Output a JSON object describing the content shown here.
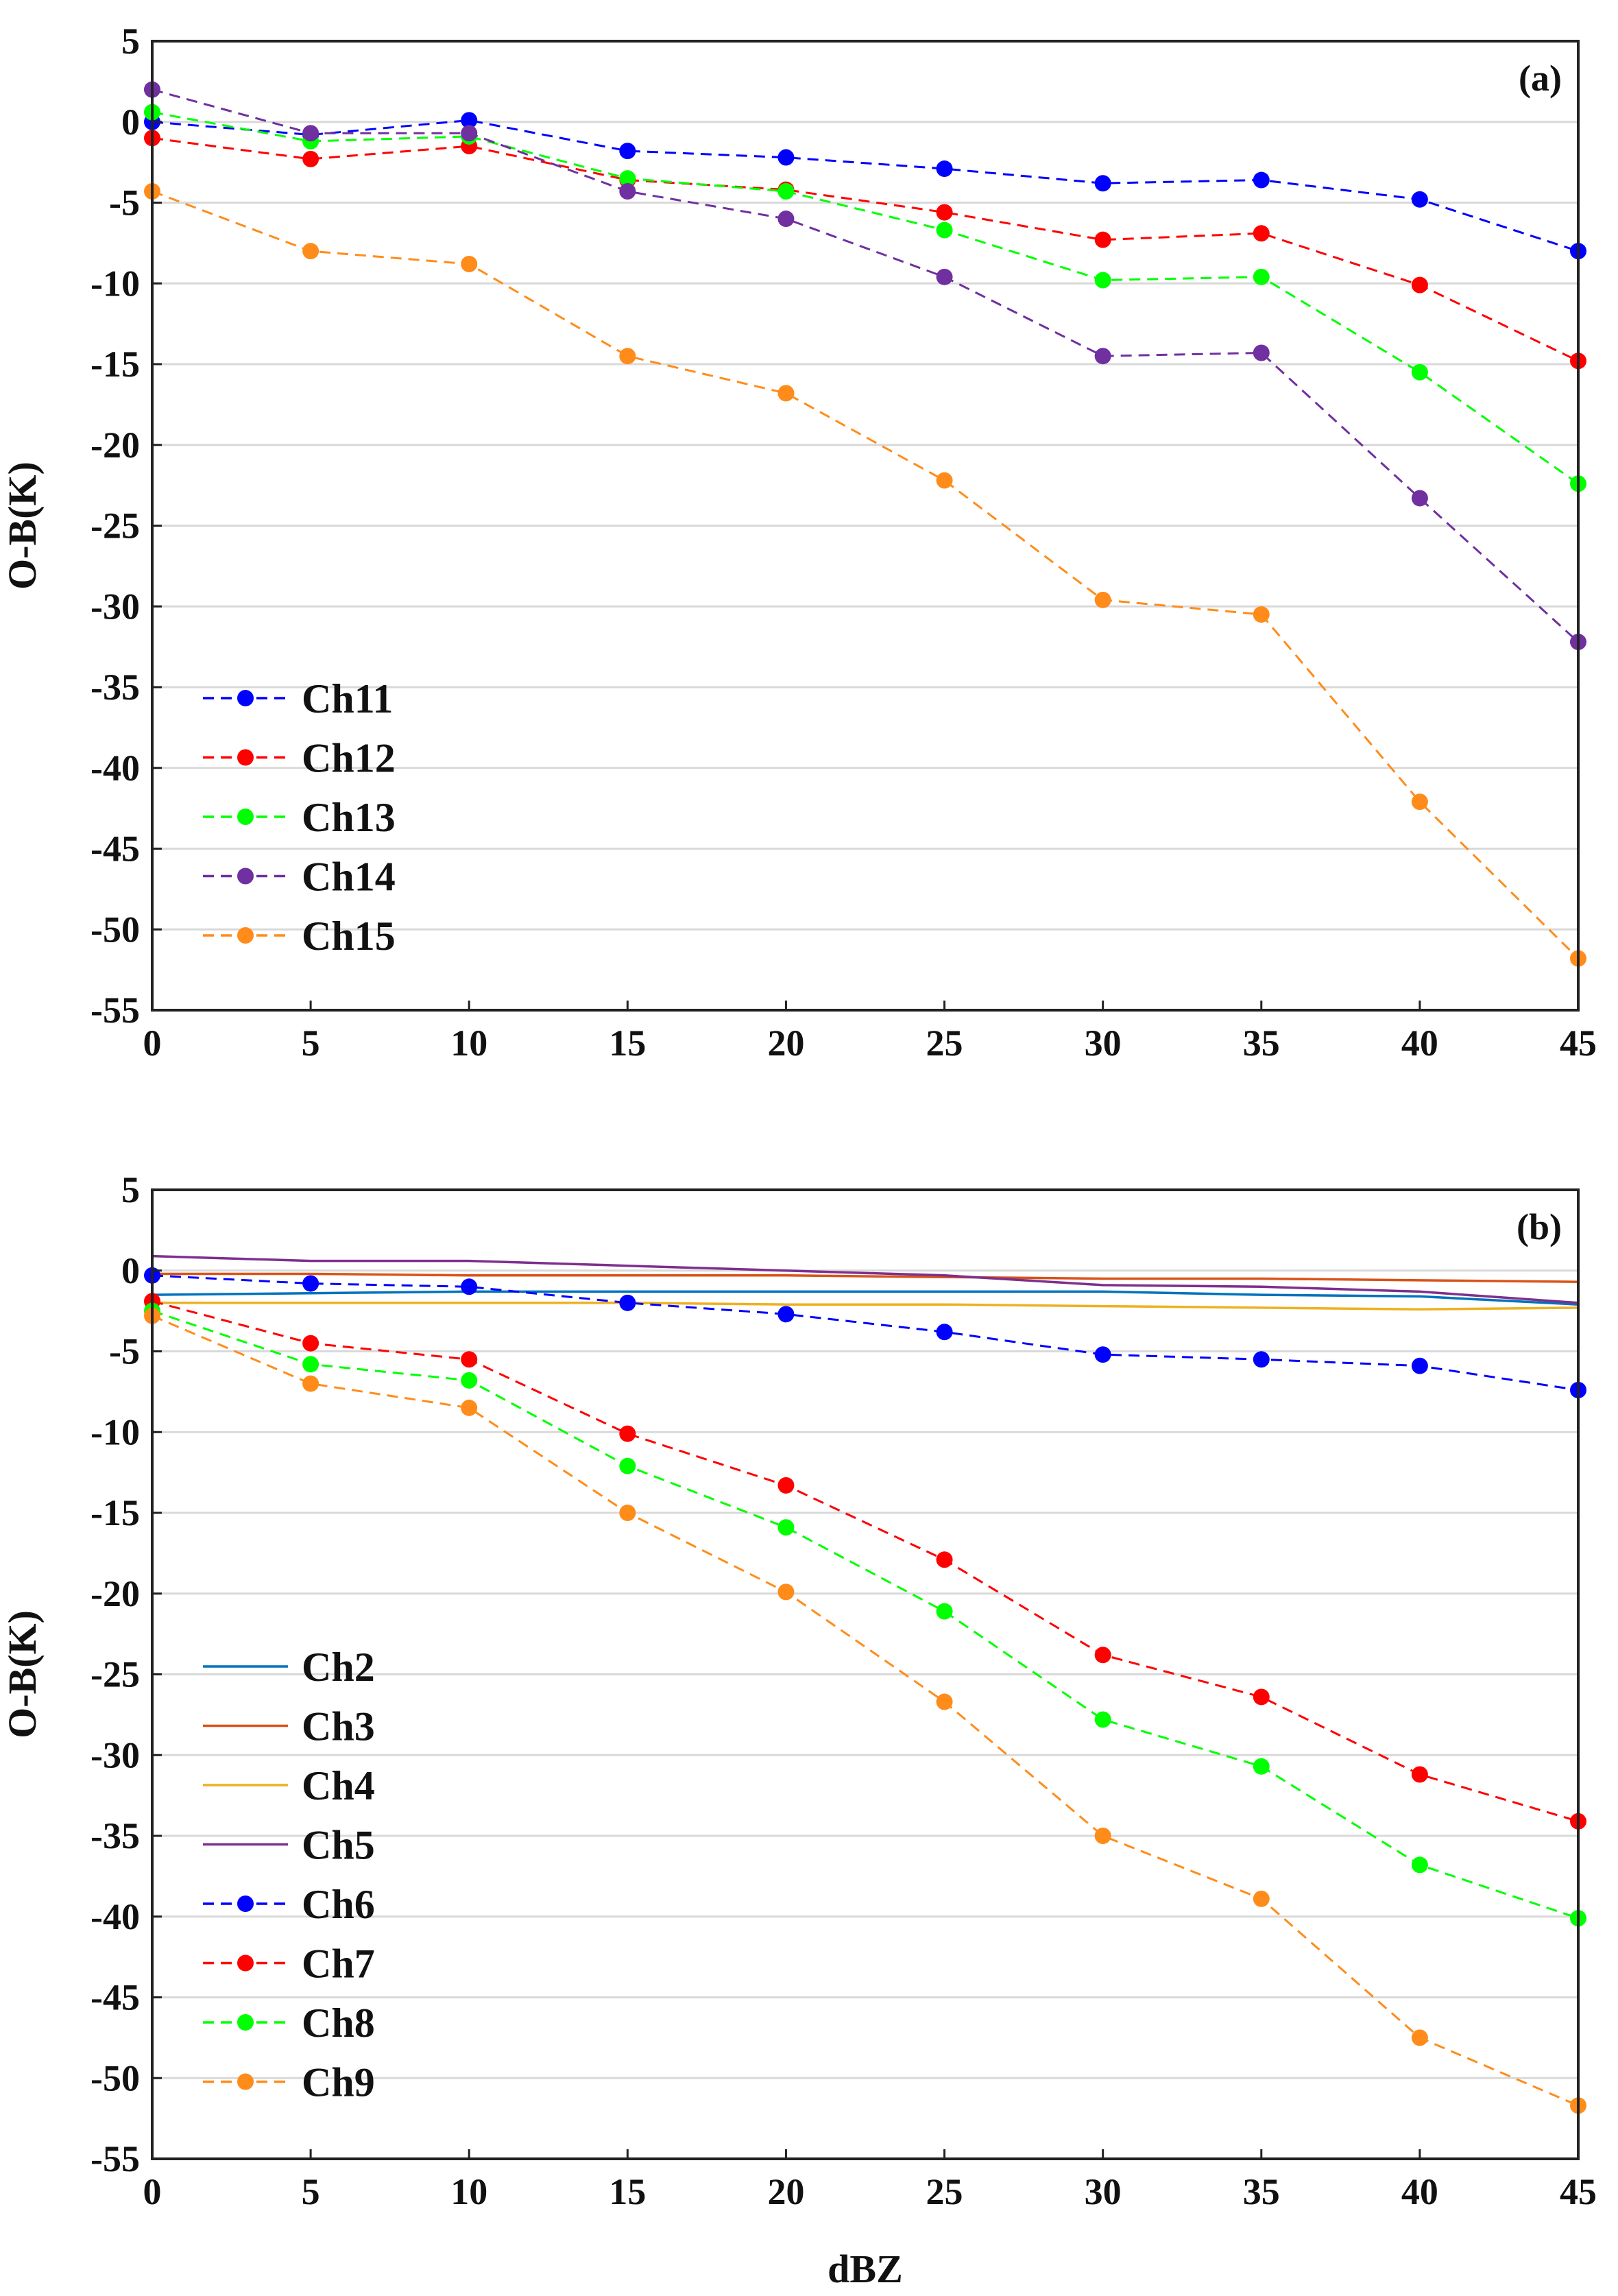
{
  "chart_data": [
    {
      "type": "line",
      "panel_label": "(a)",
      "xlabel": "",
      "ylabel": "O-B(K)",
      "xlim": [
        0,
        45
      ],
      "ylim": [
        -55,
        5
      ],
      "x": [
        0,
        5,
        10,
        15,
        20,
        25,
        30,
        35,
        40,
        45
      ],
      "xticks": [
        "0",
        "5",
        "10",
        "15",
        "20",
        "25",
        "30",
        "35",
        "40",
        "45"
      ],
      "yticks": [
        "5",
        "0",
        "-5",
        "-10",
        "-15",
        "-20",
        "-25",
        "-30",
        "-35",
        "-40",
        "-45",
        "-50",
        "-55"
      ],
      "grid": "horizontal",
      "legend_position": "bottom-left",
      "series": [
        {
          "name": "Ch11",
          "color": "#0000ff",
          "style": "dashed",
          "marker": true,
          "values": [
            0,
            -0.8,
            0.1,
            -1.8,
            -2.2,
            -2.9,
            -3.8,
            -3.6,
            -4.8,
            -8.0
          ]
        },
        {
          "name": "Ch12",
          "color": "#ff0000",
          "style": "dashed",
          "marker": true,
          "values": [
            -1.0,
            -2.3,
            -1.5,
            -3.6,
            -4.2,
            -5.6,
            -7.3,
            -6.9,
            -10.1,
            -14.8
          ]
        },
        {
          "name": "Ch13",
          "color": "#00ff00",
          "style": "dashed",
          "marker": true,
          "values": [
            0.6,
            -1.2,
            -0.9,
            -3.5,
            -4.3,
            -6.7,
            -9.8,
            -9.6,
            -15.5,
            -22.4
          ]
        },
        {
          "name": "Ch14",
          "color": "#7030a0",
          "style": "dashed",
          "marker": true,
          "values": [
            2.0,
            -0.7,
            -0.7,
            -4.3,
            -6.0,
            -9.6,
            -14.5,
            -14.3,
            -23.3,
            -32.2
          ]
        },
        {
          "name": "Ch15",
          "color": "#ff8c1a",
          "style": "dashed",
          "marker": true,
          "values": [
            -4.3,
            -8.0,
            -8.8,
            -14.5,
            -16.8,
            -22.2,
            -29.6,
            -30.5,
            -42.1,
            -51.8
          ]
        }
      ]
    },
    {
      "type": "line",
      "panel_label": "(b)",
      "xlabel": "dBZ",
      "ylabel": "O-B(K)",
      "xlim": [
        0,
        45
      ],
      "ylim": [
        -55,
        5
      ],
      "x": [
        0,
        5,
        10,
        15,
        20,
        25,
        30,
        35,
        40,
        45
      ],
      "xticks": [
        "0",
        "5",
        "10",
        "15",
        "20",
        "25",
        "30",
        "35",
        "40",
        "45"
      ],
      "yticks": [
        "5",
        "0",
        "-5",
        "-10",
        "-15",
        "-20",
        "-25",
        "-30",
        "-35",
        "-40",
        "-45",
        "-50",
        "-55"
      ],
      "grid": "horizontal",
      "legend_position": "bottom-left",
      "series": [
        {
          "name": "Ch2",
          "color": "#0072bd",
          "style": "solid",
          "marker": false,
          "values": [
            -1.5,
            -1.4,
            -1.3,
            -1.3,
            -1.3,
            -1.3,
            -1.3,
            -1.5,
            -1.6,
            -2.1
          ]
        },
        {
          "name": "Ch3",
          "color": "#d95319",
          "style": "solid",
          "marker": false,
          "values": [
            -0.2,
            -0.2,
            -0.3,
            -0.3,
            -0.3,
            -0.4,
            -0.5,
            -0.5,
            -0.6,
            -0.7
          ]
        },
        {
          "name": "Ch4",
          "color": "#edb120",
          "style": "solid",
          "marker": false,
          "values": [
            -2.0,
            -2.0,
            -2.0,
            -2.0,
            -2.1,
            -2.1,
            -2.2,
            -2.3,
            -2.4,
            -2.3
          ]
        },
        {
          "name": "Ch5",
          "color": "#7e2f8e",
          "style": "solid",
          "marker": false,
          "values": [
            0.9,
            0.6,
            0.6,
            0.3,
            0.0,
            -0.3,
            -0.9,
            -1.0,
            -1.3,
            -2.0
          ]
        },
        {
          "name": "Ch6",
          "color": "#0000ff",
          "style": "dashed",
          "marker": true,
          "values": [
            -0.3,
            -0.8,
            -1.0,
            -2.0,
            -2.7,
            -3.8,
            -5.2,
            -5.5,
            -5.9,
            -7.4
          ]
        },
        {
          "name": "Ch7",
          "color": "#ff0000",
          "style": "dashed",
          "marker": true,
          "values": [
            -1.9,
            -4.5,
            -5.5,
            -10.1,
            -13.3,
            -17.9,
            -23.8,
            -26.4,
            -31.2,
            -34.1
          ]
        },
        {
          "name": "Ch8",
          "color": "#00ff00",
          "style": "dashed",
          "marker": true,
          "values": [
            -2.5,
            -5.8,
            -6.8,
            -12.1,
            -15.9,
            -21.1,
            -27.8,
            -30.7,
            -36.8,
            -40.1
          ]
        },
        {
          "name": "Ch9",
          "color": "#ff8c1a",
          "style": "dashed",
          "marker": true,
          "values": [
            -2.8,
            -7.0,
            -8.5,
            -15.0,
            -19.9,
            -26.7,
            -35.0,
            -38.9,
            -47.5,
            -51.7
          ]
        }
      ]
    }
  ]
}
